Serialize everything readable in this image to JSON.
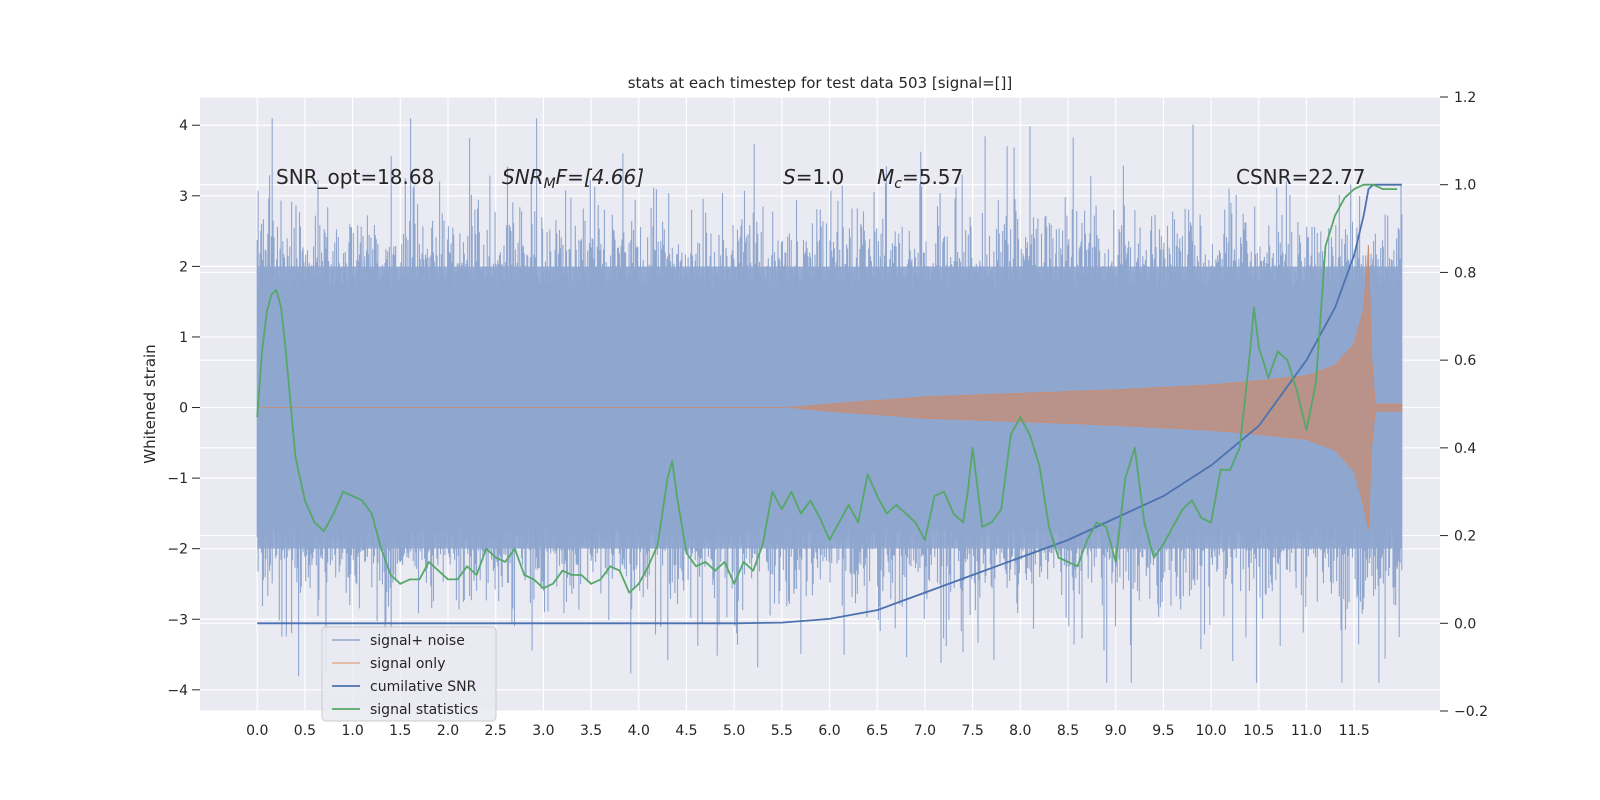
{
  "chart_data": {
    "type": "line",
    "title": "stats at each timestep for test data 503 [signal=[]]",
    "xlabel": "",
    "ylabel": "Whitened strain",
    "xlim": [
      -0.6,
      12.4
    ],
    "ylim": [
      -4.3,
      4.4
    ],
    "y2lim": [
      -0.2,
      1.2
    ],
    "grid": true,
    "legend_placement": "lower-left",
    "x_ticks": [
      "0.0",
      "0.5",
      "1.0",
      "1.5",
      "2.0",
      "2.5",
      "3.0",
      "3.5",
      "4.0",
      "4.5",
      "5.0",
      "5.5",
      "6.0",
      "6.5",
      "7.0",
      "7.5",
      "8.0",
      "8.5",
      "9.0",
      "9.5",
      "10.0",
      "10.5",
      "11.0",
      "11.5"
    ],
    "y_ticks": [
      "−4",
      "−3",
      "−2",
      "−1",
      "0",
      "1",
      "2",
      "3",
      "4"
    ],
    "y2_ticks": [
      "−0.2",
      "0.0",
      "0.2",
      "0.4",
      "0.6",
      "0.8",
      "1.0",
      "1.2"
    ],
    "annotations": {
      "snr_opt": "SNR_opt=18.68",
      "snr_mf_base": "SNR",
      "snr_mf_sub": "M",
      "snr_mf_rest": "F=[4.66]",
      "s_var": "S",
      "s_rest": "=1.0",
      "mc_var": "M",
      "mc_sub": "c",
      "mc_rest": "=5.57",
      "csnr": "CSNR=22.77"
    },
    "series": [
      {
        "name": "signal+ noise",
        "color": "#8fa6cf",
        "description_range": [
          -2.0,
          2.0
        ],
        "t_range": [
          0.0,
          12.0
        ]
      },
      {
        "name": "signal only",
        "color": "#dd8452",
        "envelope_t": [
          0,
          5.6,
          6.0,
          7.0,
          8.0,
          9.0,
          10.0,
          10.5,
          11.0,
          11.3,
          11.5,
          11.6,
          11.65,
          11.68,
          11.72,
          12.0
        ],
        "envelope_amp": [
          0.0,
          0.0,
          0.05,
          0.15,
          0.2,
          0.25,
          0.32,
          0.38,
          0.45,
          0.6,
          0.9,
          1.4,
          2.3,
          0.8,
          0.05,
          0.05
        ]
      },
      {
        "name": "cumilative SNR",
        "color": "#4c72b0",
        "axis": "right",
        "x": [
          0,
          1,
          2,
          3,
          4,
          5,
          5.5,
          6.0,
          6.5,
          7.0,
          7.5,
          8.0,
          8.5,
          9.0,
          9.5,
          10.0,
          10.5,
          11.0,
          11.3,
          11.5,
          11.6,
          11.65,
          11.7,
          12.0
        ],
        "y": [
          0.0,
          0.0,
          0.0,
          0.0,
          0.0,
          0.0,
          0.0015,
          0.01,
          0.03,
          0.07,
          0.11,
          0.15,
          0.19,
          0.24,
          0.29,
          0.36,
          0.45,
          0.6,
          0.72,
          0.84,
          0.93,
          0.99,
          1.0,
          1.0
        ]
      },
      {
        "name": "signal statistics",
        "color": "#55a868",
        "axis": "right",
        "x": [
          0.0,
          0.05,
          0.1,
          0.15,
          0.2,
          0.25,
          0.3,
          0.4,
          0.5,
          0.6,
          0.7,
          0.8,
          0.9,
          1.0,
          1.1,
          1.2,
          1.3,
          1.4,
          1.5,
          1.6,
          1.7,
          1.8,
          1.9,
          2.0,
          2.1,
          2.2,
          2.3,
          2.4,
          2.5,
          2.6,
          2.7,
          2.8,
          2.9,
          3.0,
          3.1,
          3.2,
          3.3,
          3.4,
          3.5,
          3.6,
          3.7,
          3.8,
          3.9,
          4.0,
          4.1,
          4.2,
          4.3,
          4.35,
          4.4,
          4.5,
          4.6,
          4.7,
          4.8,
          4.9,
          5.0,
          5.1,
          5.2,
          5.3,
          5.4,
          5.5,
          5.6,
          5.7,
          5.8,
          5.9,
          6.0,
          6.1,
          6.2,
          6.3,
          6.4,
          6.5,
          6.6,
          6.7,
          6.8,
          6.9,
          7.0,
          7.1,
          7.2,
          7.3,
          7.4,
          7.45,
          7.5,
          7.6,
          7.7,
          7.8,
          7.9,
          8.0,
          8.1,
          8.2,
          8.3,
          8.4,
          8.5,
          8.6,
          8.7,
          8.8,
          8.9,
          9.0,
          9.1,
          9.2,
          9.3,
          9.4,
          9.5,
          9.6,
          9.7,
          9.8,
          9.9,
          10.0,
          10.1,
          10.2,
          10.3,
          10.4,
          10.45,
          10.5,
          10.6,
          10.7,
          10.8,
          10.9,
          11.0,
          11.1,
          11.2,
          11.3,
          11.4,
          11.5,
          11.6,
          11.65,
          11.7,
          11.8,
          11.9,
          11.95
        ],
        "y": [
          0.47,
          0.62,
          0.71,
          0.75,
          0.76,
          0.72,
          0.62,
          0.38,
          0.28,
          0.23,
          0.21,
          0.25,
          0.3,
          0.29,
          0.28,
          0.25,
          0.17,
          0.11,
          0.09,
          0.1,
          0.1,
          0.14,
          0.12,
          0.1,
          0.1,
          0.13,
          0.11,
          0.17,
          0.15,
          0.14,
          0.17,
          0.11,
          0.1,
          0.08,
          0.09,
          0.12,
          0.11,
          0.11,
          0.09,
          0.1,
          0.13,
          0.12,
          0.07,
          0.09,
          0.13,
          0.18,
          0.33,
          0.37,
          0.29,
          0.16,
          0.13,
          0.14,
          0.12,
          0.14,
          0.09,
          0.14,
          0.12,
          0.18,
          0.3,
          0.26,
          0.3,
          0.25,
          0.28,
          0.24,
          0.19,
          0.23,
          0.27,
          0.23,
          0.34,
          0.29,
          0.25,
          0.27,
          0.25,
          0.23,
          0.19,
          0.29,
          0.3,
          0.25,
          0.23,
          0.3,
          0.4,
          0.22,
          0.23,
          0.26,
          0.43,
          0.47,
          0.43,
          0.36,
          0.22,
          0.15,
          0.14,
          0.13,
          0.19,
          0.23,
          0.22,
          0.14,
          0.33,
          0.4,
          0.23,
          0.15,
          0.18,
          0.22,
          0.26,
          0.28,
          0.24,
          0.23,
          0.35,
          0.35,
          0.4,
          0.6,
          0.72,
          0.63,
          0.56,
          0.62,
          0.6,
          0.53,
          0.44,
          0.55,
          0.86,
          0.93,
          0.97,
          0.99,
          1.0,
          1.0,
          1.0,
          0.99,
          0.99,
          0.99
        ]
      }
    ]
  }
}
